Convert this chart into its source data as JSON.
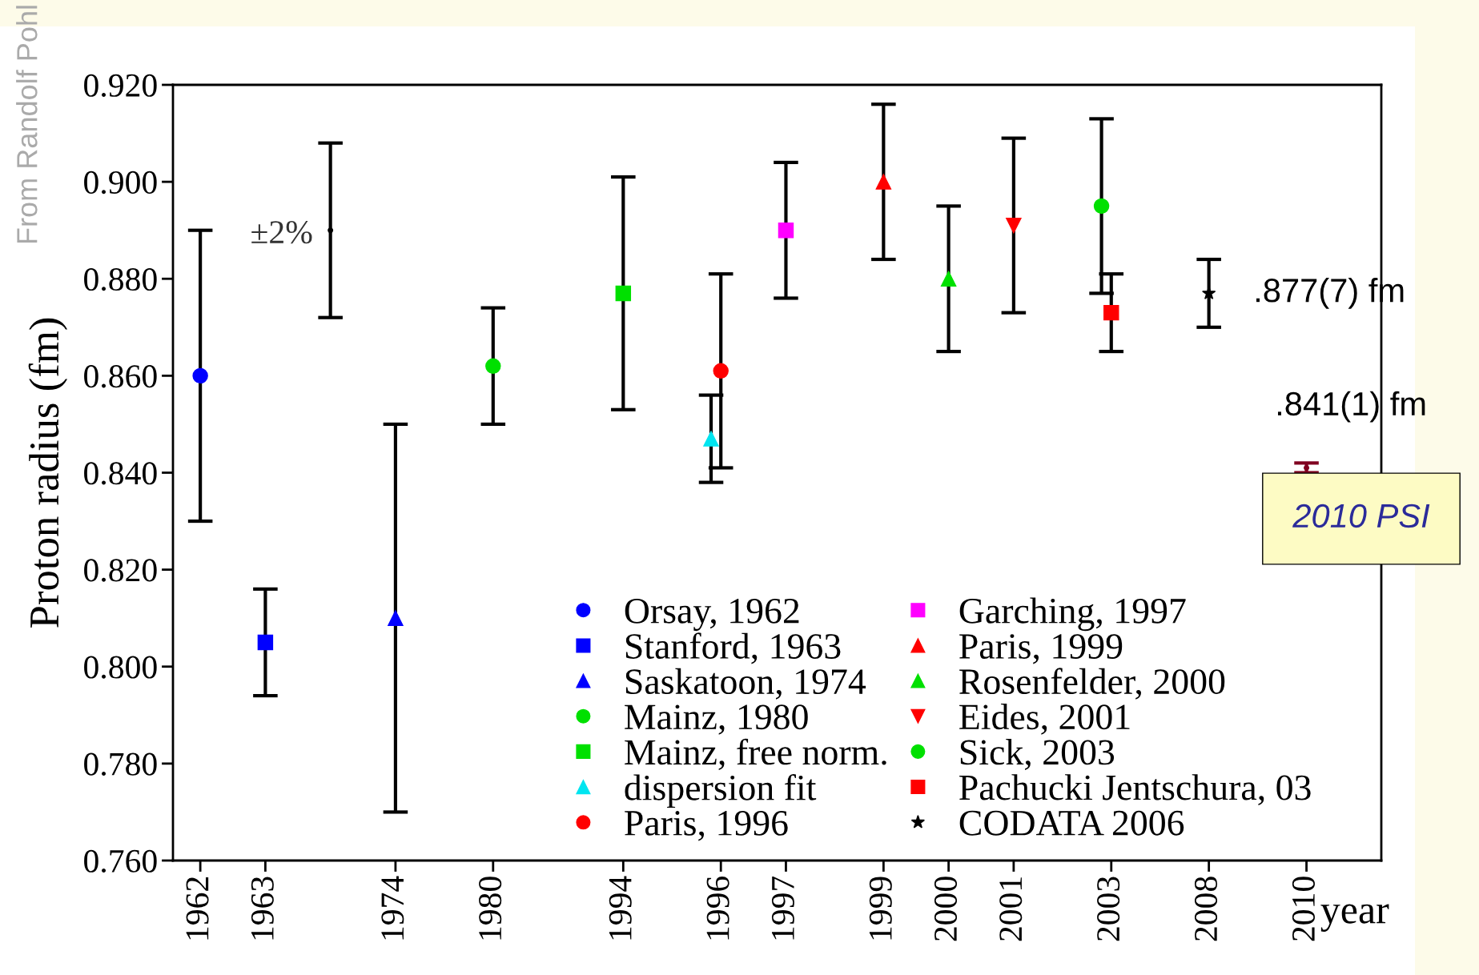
{
  "chart_data": {
    "type": "scatter",
    "xlabel": "year",
    "ylabel": "Proton radius (fm)",
    "categories": [
      "1962",
      null,
      "1963",
      null,
      null,
      null,
      "1974",
      null,
      null,
      "1980",
      null,
      null,
      null,
      "1994",
      null,
      null,
      "1996",
      null,
      "1997",
      null,
      null,
      "1999",
      null,
      "2000",
      null,
      "2001",
      null,
      null,
      "2003",
      null,
      null,
      "2008",
      null,
      null,
      "2010"
    ],
    "ylim": [
      0.76,
      0.92
    ],
    "yticks": [
      {
        "value": 0.76,
        "label": "0.760"
      },
      {
        "value": 0.78,
        "label": "0.780"
      },
      {
        "value": 0.8,
        "label": "0.800"
      },
      {
        "value": 0.82,
        "label": "0.820"
      },
      {
        "value": 0.84,
        "label": "0.840"
      },
      {
        "value": 0.86,
        "label": "0.860"
      },
      {
        "value": 0.88,
        "label": "0.880"
      },
      {
        "value": 0.9,
        "label": "0.900"
      },
      {
        "value": 0.92,
        "label": "0.920"
      }
    ],
    "grid": false,
    "legend": "bottom right",
    "series": [
      {
        "name": "Orsay, 1962",
        "color": "#0000ff",
        "marker": "circle",
        "values": [
          0.86,
          null,
          null,
          null,
          null,
          null,
          null,
          null,
          null,
          null,
          null,
          null,
          null,
          null,
          null,
          null,
          null,
          null,
          null,
          null,
          null,
          null,
          null,
          null,
          null,
          null,
          null,
          null,
          null,
          null,
          null,
          null,
          null,
          null,
          null
        ],
        "errors": [
          0.03,
          null,
          null,
          null,
          null,
          null,
          null,
          null,
          null,
          null,
          null,
          null,
          null,
          null,
          null,
          null,
          null,
          null,
          null,
          null,
          null,
          null,
          null,
          null,
          null,
          null,
          null,
          null,
          null,
          null,
          null,
          null,
          null,
          null,
          null
        ]
      },
      {
        "name": "Stanford, 1963",
        "color": "#0000ff",
        "marker": "square",
        "values": [
          null,
          null,
          0.805,
          null,
          null,
          null,
          null,
          null,
          null,
          null,
          null,
          null,
          null,
          null,
          null,
          null,
          null,
          null,
          null,
          null,
          null,
          null,
          null,
          null,
          null,
          null,
          null,
          null,
          null,
          null,
          null,
          null,
          null,
          null,
          null
        ],
        "errors": [
          null,
          null,
          0.011,
          null,
          null,
          null,
          null,
          null,
          null,
          null,
          null,
          null,
          null,
          null,
          null,
          null,
          null,
          null,
          null,
          null,
          null,
          null,
          null,
          null,
          null,
          null,
          null,
          null,
          null,
          null,
          null,
          null,
          null,
          null,
          null
        ]
      },
      {
        "name": "Saskatoon, 1974",
        "color": "#0000ff",
        "marker": "triangle",
        "values": [
          null,
          null,
          null,
          null,
          null,
          null,
          0.81,
          null,
          null,
          null,
          null,
          null,
          null,
          null,
          null,
          null,
          null,
          null,
          null,
          null,
          null,
          null,
          null,
          null,
          null,
          null,
          null,
          null,
          null,
          null,
          null,
          null,
          null,
          null,
          null
        ],
        "errors": [
          null,
          null,
          null,
          null,
          null,
          null,
          0.04,
          null,
          null,
          null,
          null,
          null,
          null,
          null,
          null,
          null,
          null,
          null,
          null,
          null,
          null,
          null,
          null,
          null,
          null,
          null,
          null,
          null,
          null,
          null,
          null,
          null,
          null,
          null,
          null
        ]
      },
      {
        "name": "Mainz, 1980",
        "color": "#00e000",
        "marker": "circle",
        "values": [
          null,
          null,
          null,
          null,
          null,
          null,
          null,
          null,
          null,
          0.862,
          null,
          null,
          null,
          null,
          null,
          null,
          null,
          null,
          null,
          null,
          null,
          null,
          null,
          null,
          null,
          null,
          null,
          null,
          null,
          null,
          null,
          null,
          null,
          null,
          null
        ],
        "errors": [
          null,
          null,
          null,
          null,
          null,
          null,
          null,
          null,
          null,
          0.012,
          null,
          null,
          null,
          null,
          null,
          null,
          null,
          null,
          null,
          null,
          null,
          null,
          null,
          null,
          null,
          null,
          null,
          null,
          null,
          null,
          null,
          null,
          null,
          null,
          null
        ]
      },
      {
        "name": "Mainz, free norm.",
        "color": "#00e000",
        "marker": "square",
        "values": [
          null,
          null,
          null,
          null,
          null,
          null,
          null,
          null,
          null,
          null,
          null,
          null,
          null,
          0.877,
          null,
          null,
          null,
          null,
          null,
          null,
          null,
          null,
          null,
          null,
          null,
          null,
          null,
          null,
          null,
          null,
          null,
          null,
          null,
          null,
          null
        ],
        "errors": [
          null,
          null,
          null,
          null,
          null,
          null,
          null,
          null,
          null,
          null,
          null,
          null,
          null,
          0.024,
          null,
          null,
          null,
          null,
          null,
          null,
          null,
          null,
          null,
          null,
          null,
          null,
          null,
          null,
          null,
          null,
          null,
          null,
          null,
          null,
          null
        ]
      },
      {
        "name": "dispersion fit",
        "color": "#00e5f0",
        "marker": "triangle",
        "values": [
          null,
          null,
          null,
          null,
          null,
          null,
          null,
          null,
          null,
          null,
          null,
          null,
          null,
          null,
          null,
          null,
          0.847,
          null,
          null,
          null,
          null,
          null,
          null,
          null,
          null,
          null,
          null,
          null,
          null,
          null,
          null,
          null,
          null,
          null,
          null
        ],
        "errors": [
          null,
          null,
          null,
          null,
          null,
          null,
          null,
          null,
          null,
          null,
          null,
          null,
          null,
          null,
          null,
          null,
          0.009,
          null,
          null,
          null,
          null,
          null,
          null,
          null,
          null,
          null,
          null,
          null,
          null,
          null,
          null,
          null,
          null,
          null,
          null
        ]
      },
      {
        "name": "Paris, 1996",
        "color": "#ff0000",
        "marker": "circle",
        "values": [
          null,
          null,
          null,
          null,
          null,
          null,
          null,
          null,
          null,
          null,
          null,
          null,
          null,
          null,
          null,
          null,
          0.861,
          null,
          null,
          null,
          null,
          null,
          null,
          null,
          null,
          null,
          null,
          null,
          null,
          null,
          null,
          null,
          null,
          null,
          null
        ],
        "errors": [
          null,
          null,
          null,
          null,
          null,
          null,
          null,
          null,
          null,
          null,
          null,
          null,
          null,
          null,
          null,
          null,
          0.02,
          null,
          null,
          null,
          null,
          null,
          null,
          null,
          null,
          null,
          null,
          null,
          null,
          null,
          null,
          null,
          null,
          null,
          null
        ]
      },
      {
        "name": "Garching, 1997",
        "color": "#ff00ff",
        "marker": "square",
        "values": [
          null,
          null,
          null,
          null,
          null,
          null,
          null,
          null,
          null,
          null,
          null,
          null,
          null,
          null,
          null,
          null,
          null,
          null,
          0.89,
          null,
          null,
          null,
          null,
          null,
          null,
          null,
          null,
          null,
          null,
          null,
          null,
          null,
          null,
          null,
          null
        ],
        "errors": [
          null,
          null,
          null,
          null,
          null,
          null,
          null,
          null,
          null,
          null,
          null,
          null,
          null,
          null,
          null,
          null,
          null,
          null,
          0.014,
          null,
          null,
          null,
          null,
          null,
          null,
          null,
          null,
          null,
          null,
          null,
          null,
          null,
          null,
          null,
          null
        ]
      },
      {
        "name": "Paris, 1999",
        "color": "#ff0000",
        "marker": "triangle",
        "values": [
          null,
          null,
          null,
          null,
          null,
          null,
          null,
          null,
          null,
          null,
          null,
          null,
          null,
          null,
          null,
          null,
          null,
          null,
          null,
          null,
          null,
          0.9,
          null,
          null,
          null,
          null,
          null,
          null,
          null,
          null,
          null,
          null,
          null,
          null,
          null
        ],
        "errors": [
          null,
          null,
          null,
          null,
          null,
          null,
          null,
          null,
          null,
          null,
          null,
          null,
          null,
          null,
          null,
          null,
          null,
          null,
          null,
          null,
          null,
          0.016,
          null,
          null,
          null,
          null,
          null,
          null,
          null,
          null,
          null,
          null,
          null,
          null,
          null
        ]
      },
      {
        "name": "Rosenfelder, 2000",
        "color": "#00e000",
        "marker": "triangle",
        "values": [
          null,
          null,
          null,
          null,
          null,
          null,
          null,
          null,
          null,
          null,
          null,
          null,
          null,
          null,
          null,
          null,
          null,
          null,
          null,
          null,
          null,
          null,
          null,
          0.88,
          null,
          null,
          null,
          null,
          null,
          null,
          null,
          null,
          null,
          null,
          null
        ],
        "errors": [
          null,
          null,
          null,
          null,
          null,
          null,
          null,
          null,
          null,
          null,
          null,
          null,
          null,
          null,
          null,
          null,
          null,
          null,
          null,
          null,
          null,
          null,
          null,
          0.015,
          null,
          null,
          null,
          null,
          null,
          null,
          null,
          null,
          null,
          null,
          null
        ]
      },
      {
        "name": "Eides, 2001",
        "color": "#ff0000",
        "marker": "triangle_down",
        "values": [
          null,
          null,
          null,
          null,
          null,
          null,
          null,
          null,
          null,
          null,
          null,
          null,
          null,
          null,
          null,
          null,
          null,
          null,
          null,
          null,
          null,
          null,
          null,
          null,
          null,
          0.891,
          null,
          null,
          null,
          null,
          null,
          null,
          null,
          null,
          null
        ],
        "errors": [
          null,
          null,
          null,
          null,
          null,
          null,
          null,
          null,
          null,
          null,
          null,
          null,
          null,
          null,
          null,
          null,
          null,
          null,
          null,
          null,
          null,
          null,
          null,
          null,
          null,
          0.018,
          null,
          null,
          null,
          null,
          null,
          null,
          null,
          null,
          null
        ]
      },
      {
        "name": "Sick, 2003",
        "color": "#00e000",
        "marker": "circle",
        "values": [
          null,
          null,
          null,
          null,
          null,
          null,
          null,
          null,
          null,
          null,
          null,
          null,
          null,
          null,
          null,
          null,
          null,
          null,
          null,
          null,
          null,
          null,
          null,
          null,
          null,
          null,
          null,
          null,
          0.895,
          null,
          null,
          null,
          null,
          null,
          null
        ],
        "errors": [
          null,
          null,
          null,
          null,
          null,
          null,
          null,
          null,
          null,
          null,
          null,
          null,
          null,
          null,
          null,
          null,
          null,
          null,
          null,
          null,
          null,
          null,
          null,
          null,
          null,
          null,
          null,
          null,
          0.018,
          null,
          null,
          null,
          null,
          null,
          null
        ]
      },
      {
        "name": "Pachucki Jentschura, 03",
        "color": "#ff0000",
        "marker": "square",
        "values": [
          null,
          null,
          null,
          null,
          null,
          null,
          null,
          null,
          null,
          null,
          null,
          null,
          null,
          null,
          null,
          null,
          null,
          null,
          null,
          null,
          null,
          null,
          null,
          null,
          null,
          null,
          null,
          null,
          0.873,
          null,
          null,
          null,
          null,
          null,
          null
        ],
        "errors": [
          null,
          null,
          null,
          null,
          null,
          null,
          null,
          null,
          null,
          null,
          null,
          null,
          null,
          null,
          null,
          null,
          null,
          null,
          null,
          null,
          null,
          null,
          null,
          null,
          null,
          null,
          null,
          null,
          0.008,
          null,
          null,
          null,
          null,
          null,
          null
        ]
      },
      {
        "name": "CODATA 2006",
        "color": "#000000",
        "marker": "star",
        "values": [
          null,
          null,
          null,
          null,
          null,
          null,
          null,
          null,
          null,
          null,
          null,
          null,
          null,
          null,
          null,
          null,
          null,
          null,
          null,
          null,
          null,
          null,
          null,
          null,
          null,
          null,
          null,
          null,
          null,
          null,
          null,
          0.877,
          null,
          null,
          null
        ],
        "errors": [
          null,
          null,
          null,
          null,
          null,
          null,
          null,
          null,
          null,
          null,
          null,
          null,
          null,
          null,
          null,
          null,
          null,
          null,
          null,
          null,
          null,
          null,
          null,
          null,
          null,
          null,
          null,
          null,
          null,
          null,
          null,
          0.007,
          null,
          null,
          null
        ]
      },
      {
        "color": "#000000",
        "marker": "none",
        "values": [
          null,
          null,
          null,
          null,
          0.89,
          null,
          null,
          null,
          null,
          null,
          null,
          null,
          null,
          null,
          null,
          null,
          null,
          null,
          null,
          null,
          null,
          null,
          null,
          null,
          null,
          null,
          null,
          null,
          null,
          null,
          null,
          null,
          null,
          null,
          null
        ],
        "errors": [
          null,
          null,
          null,
          null,
          0.018,
          null,
          null,
          null,
          null,
          null,
          null,
          null,
          null,
          null,
          null,
          null,
          null,
          null,
          null,
          null,
          null,
          null,
          null,
          null,
          null,
          null,
          null,
          null,
          null,
          null,
          null,
          null,
          null,
          null,
          null
        ]
      },
      {
        "color": "#800020",
        "marker": "none",
        "values": [
          null,
          null,
          null,
          null,
          null,
          null,
          null,
          null,
          null,
          null,
          null,
          null,
          null,
          null,
          null,
          null,
          null,
          null,
          null,
          null,
          null,
          null,
          null,
          null,
          null,
          null,
          null,
          null,
          null,
          null,
          null,
          null,
          null,
          null,
          0.841
        ],
        "errors": [
          null,
          null,
          null,
          null,
          null,
          null,
          null,
          null,
          null,
          null,
          null,
          null,
          null,
          null,
          null,
          null,
          null,
          null,
          null,
          null,
          null,
          null,
          null,
          null,
          null,
          null,
          null,
          null,
          null,
          null,
          null,
          null,
          null,
          null,
          0.001
        ]
      }
    ],
    "annotations": [
      "±2%",
      {
        "text": ".877(7) fm",
        "x": "2008",
        "y": 0.877
      },
      {
        "text": ".841(1) fm",
        "x": "2010",
        "y": 0.841
      },
      "2010 PSI",
      "From Randolf Pohl"
    ]
  }
}
